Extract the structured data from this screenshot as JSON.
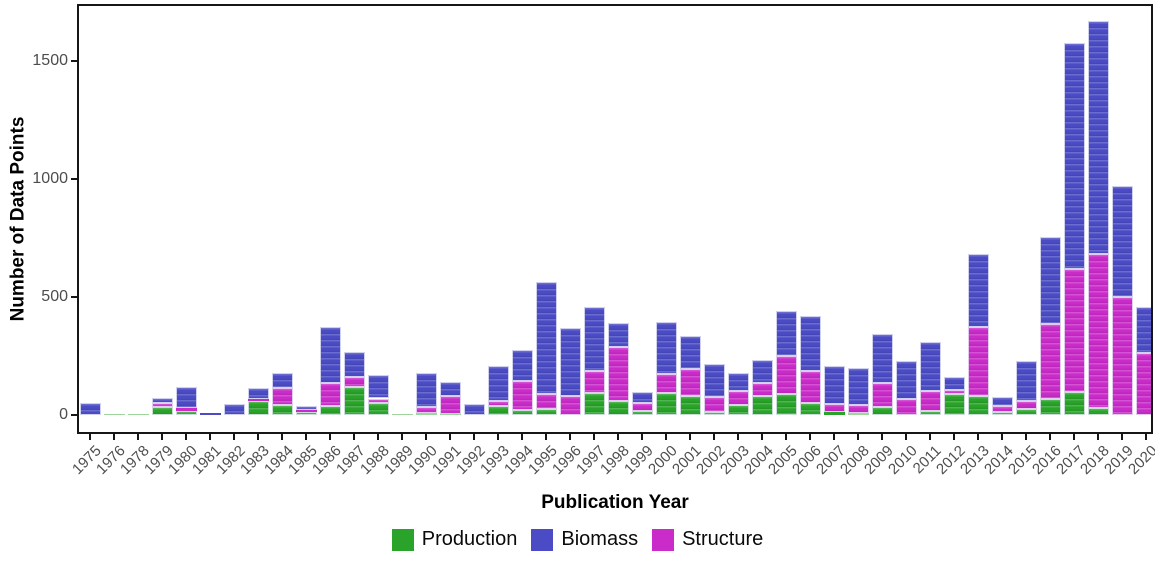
{
  "figure": {
    "x_axis_title": "Publication Year",
    "y_axis_title": "Number of Data Points"
  },
  "legend": {
    "items": [
      {
        "label": "Production",
        "color": "#29a329"
      },
      {
        "label": "Biomass",
        "color": "#4b4cc5"
      },
      {
        "label": "Structure",
        "color": "#ca2cc9"
      }
    ]
  },
  "chart_data": {
    "type": "bar",
    "stacked": true,
    "title": "",
    "xlabel": "Publication Year",
    "ylabel": "Number of Data Points",
    "grid": false,
    "legend_position": "bottom",
    "legend_order": [
      "Production",
      "Biomass",
      "Structure"
    ],
    "stack_order_bottom_to_top": [
      "Production",
      "Structure",
      "Biomass"
    ],
    "y_ticks": [
      0,
      500,
      1000,
      1500
    ],
    "y_tick_labels": [
      "0",
      "500",
      "1000",
      "1500"
    ],
    "ylim": [
      -83,
      1751
    ],
    "categories": [
      "1975",
      "1976",
      "1978",
      "1979",
      "1980",
      "1981",
      "1982",
      "1983",
      "1984",
      "1985",
      "1986",
      "1987",
      "1988",
      "1989",
      "1990",
      "1991",
      "1992",
      "1993",
      "1994",
      "1995",
      "1996",
      "1997",
      "1998",
      "1999",
      "2000",
      "2001",
      "2002",
      "2003",
      "2004",
      "2005",
      "2006",
      "2007",
      "2008",
      "2009",
      "2010",
      "2011",
      "2012",
      "2013",
      "2014",
      "2015",
      "2016",
      "2017",
      "2018",
      "2019",
      "2020"
    ],
    "series": [
      {
        "name": "Production",
        "color": "#29a329",
        "values": [
          0,
          5,
          2,
          32,
          18,
          2,
          0,
          59,
          44,
          13,
          38,
          117,
          52,
          5,
          7,
          4,
          0,
          40,
          23,
          25,
          0,
          95,
          61,
          18,
          93,
          82,
          13,
          42,
          82,
          89,
          49,
          11,
          7,
          35,
          0,
          18,
          89,
          82,
          14,
          25,
          68,
          96,
          28,
          0,
          0
        ]
      },
      {
        "name": "Structure",
        "color": "#ca2cc9",
        "values": [
          0,
          0,
          0,
          20,
          10,
          0,
          0,
          7,
          69,
          10,
          96,
          42,
          18,
          0,
          28,
          75,
          0,
          21,
          123,
          64,
          79,
          93,
          229,
          31,
          80,
          112,
          62,
          58,
          52,
          162,
          138,
          35,
          34,
          99,
          68,
          85,
          17,
          290,
          25,
          35,
          318,
          523,
          654,
          501,
          261
        ]
      },
      {
        "name": "Biomass",
        "color": "#4b4cc5",
        "values": [
          50,
          0,
          0,
          20,
          92,
          8,
          48,
          48,
          63,
          17,
          241,
          106,
          99,
          0,
          145,
          62,
          48,
          145,
          130,
          476,
          288,
          268,
          100,
          49,
          222,
          141,
          143,
          76,
          99,
          191,
          233,
          160,
          158,
          209,
          162,
          205,
          56,
          311,
          38,
          168,
          367,
          957,
          986,
          468,
          195
        ]
      }
    ]
  }
}
